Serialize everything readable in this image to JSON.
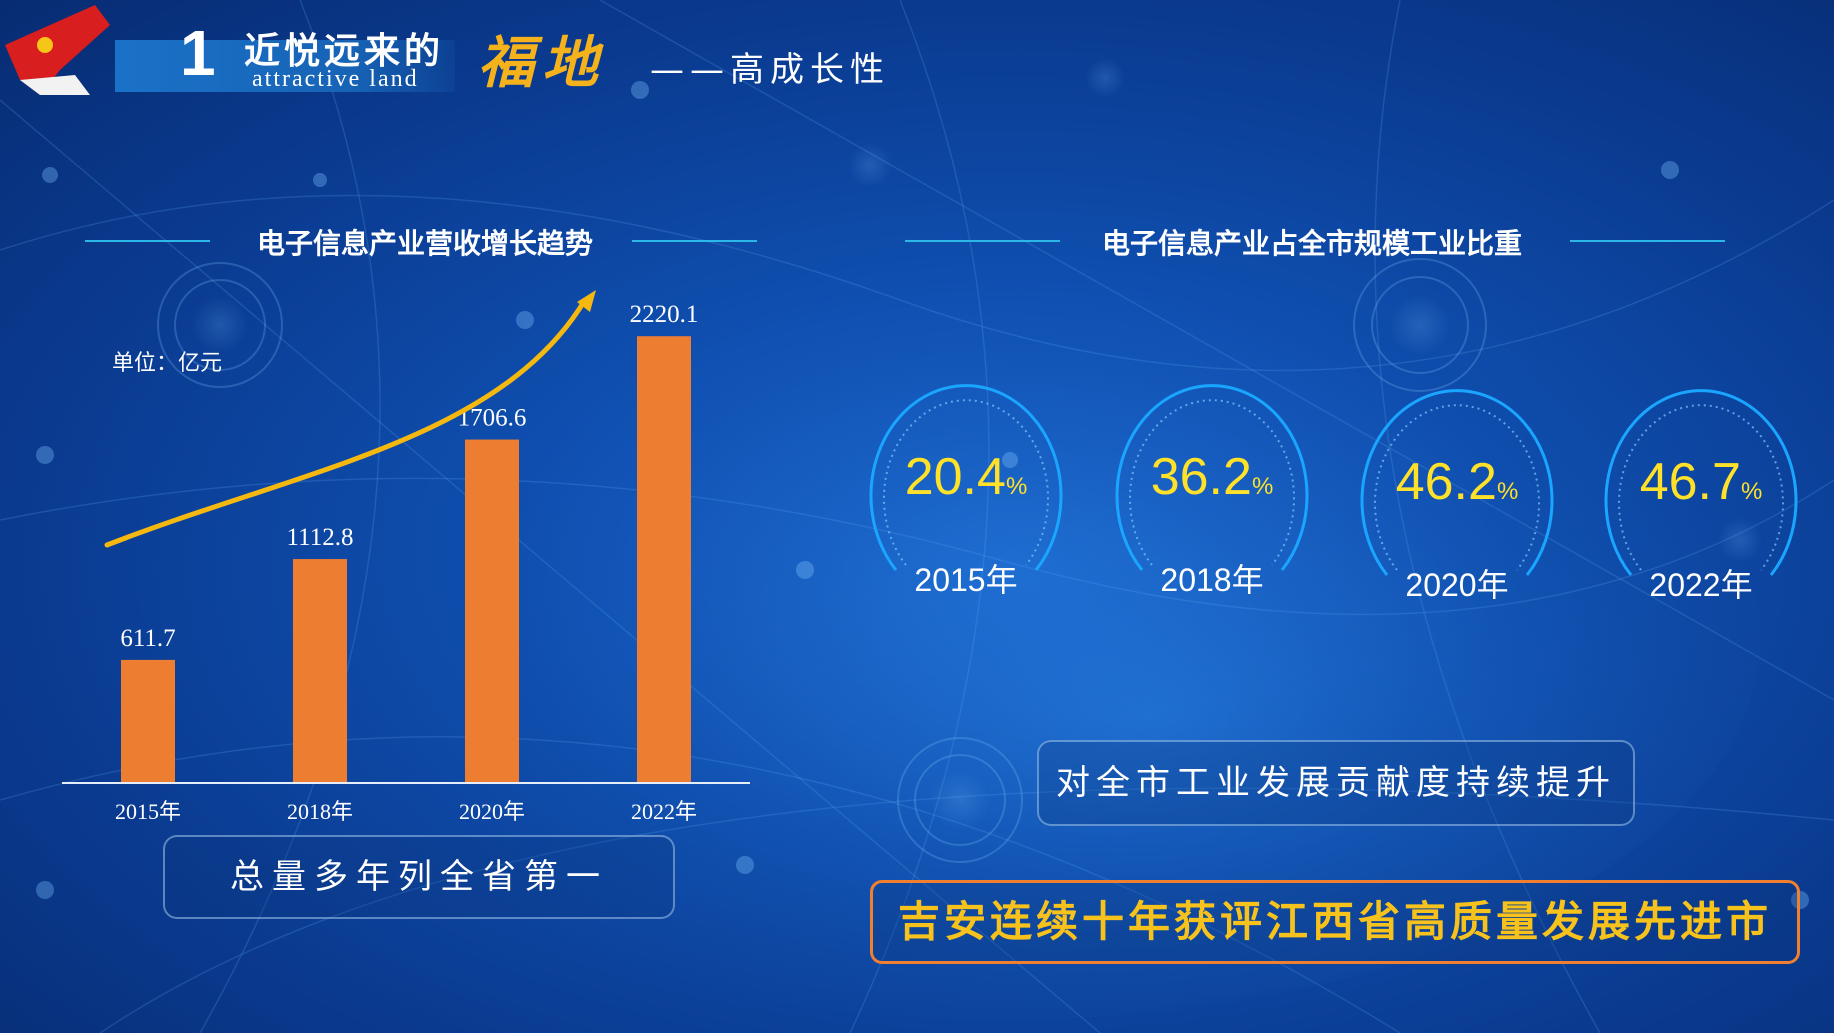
{
  "header": {
    "number": "1",
    "title_cn": "近悦远来的",
    "title_en": "attractive land",
    "highlight": "福地",
    "subtitle": "——高成长性"
  },
  "left_panel": {
    "title": "电子信息产业营收增长趋势",
    "unit": "单位：亿元",
    "note": "总量多年列全省第一"
  },
  "right_panel": {
    "title": "电子信息产业占全市规模工业比重",
    "gauges": [
      {
        "value": "20.4",
        "unit": "%",
        "year": "2015年"
      },
      {
        "value": "36.2",
        "unit": "%",
        "year": "2018年"
      },
      {
        "value": "46.2",
        "unit": "%",
        "year": "2020年"
      },
      {
        "value": "46.7",
        "unit": "%",
        "year": "2022年"
      }
    ],
    "note": "对全市工业发展贡献度持续提升",
    "highlight": "吉安连续十年获评江西省高质量发展先进市"
  },
  "colors": {
    "bar": "#ed7d31",
    "trend_arrow": "#f5b80f",
    "accent_yellow": "#ffe12a",
    "gauge_ring": "#1aa6ff"
  },
  "chart_data": [
    {
      "type": "bar",
      "title": "电子信息产业营收增长趋势",
      "ylabel": "单位：亿元",
      "categories": [
        "2015年",
        "2018年",
        "2020年",
        "2022年"
      ],
      "values": [
        611.7,
        1112.8,
        1706.6,
        2220.1
      ],
      "value_labels": [
        "611.7",
        "1112.8",
        "1706.6",
        "2220.1"
      ],
      "ylim": [
        0,
        2400
      ],
      "grid": false
    },
    {
      "type": "gauge",
      "title": "电子信息产业占全市规模工业比重",
      "categories": [
        "2015年",
        "2018年",
        "2020年",
        "2022年"
      ],
      "values": [
        20.4,
        36.2,
        46.2,
        46.7
      ],
      "unit": "%"
    }
  ]
}
